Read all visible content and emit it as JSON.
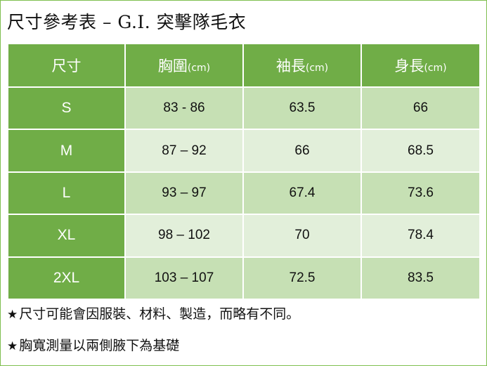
{
  "title": "尺寸參考表 – G.I. 突擊隊毛衣",
  "colors": {
    "header_green": "#70ad47",
    "row_dark": "#c6e0b4",
    "row_light": "#e2efda"
  },
  "table": {
    "headers": [
      {
        "label": "尺寸",
        "unit": ""
      },
      {
        "label": "胸圍",
        "unit": "(cm)"
      },
      {
        "label": "袖長",
        "unit": "(cm)"
      },
      {
        "label": "身長",
        "unit": "(cm)"
      }
    ],
    "rows": [
      [
        "S",
        "83 - 86",
        "63.5",
        "66"
      ],
      [
        "M",
        "87 – 92",
        "66",
        "68.5"
      ],
      [
        "L",
        "93 – 97",
        "67.4",
        "73.6"
      ],
      [
        "XL",
        "98 – 102",
        "70",
        "78.4"
      ],
      [
        "2XL",
        "103 – 107",
        "72.5",
        "83.5"
      ]
    ]
  },
  "notes": [
    {
      "star": "★",
      "text": "尺寸可能會因服裝、材料、製造，而略有不同。"
    },
    {
      "star": "★",
      "text": "胸寬測量以兩側腋下為基礎"
    }
  ]
}
